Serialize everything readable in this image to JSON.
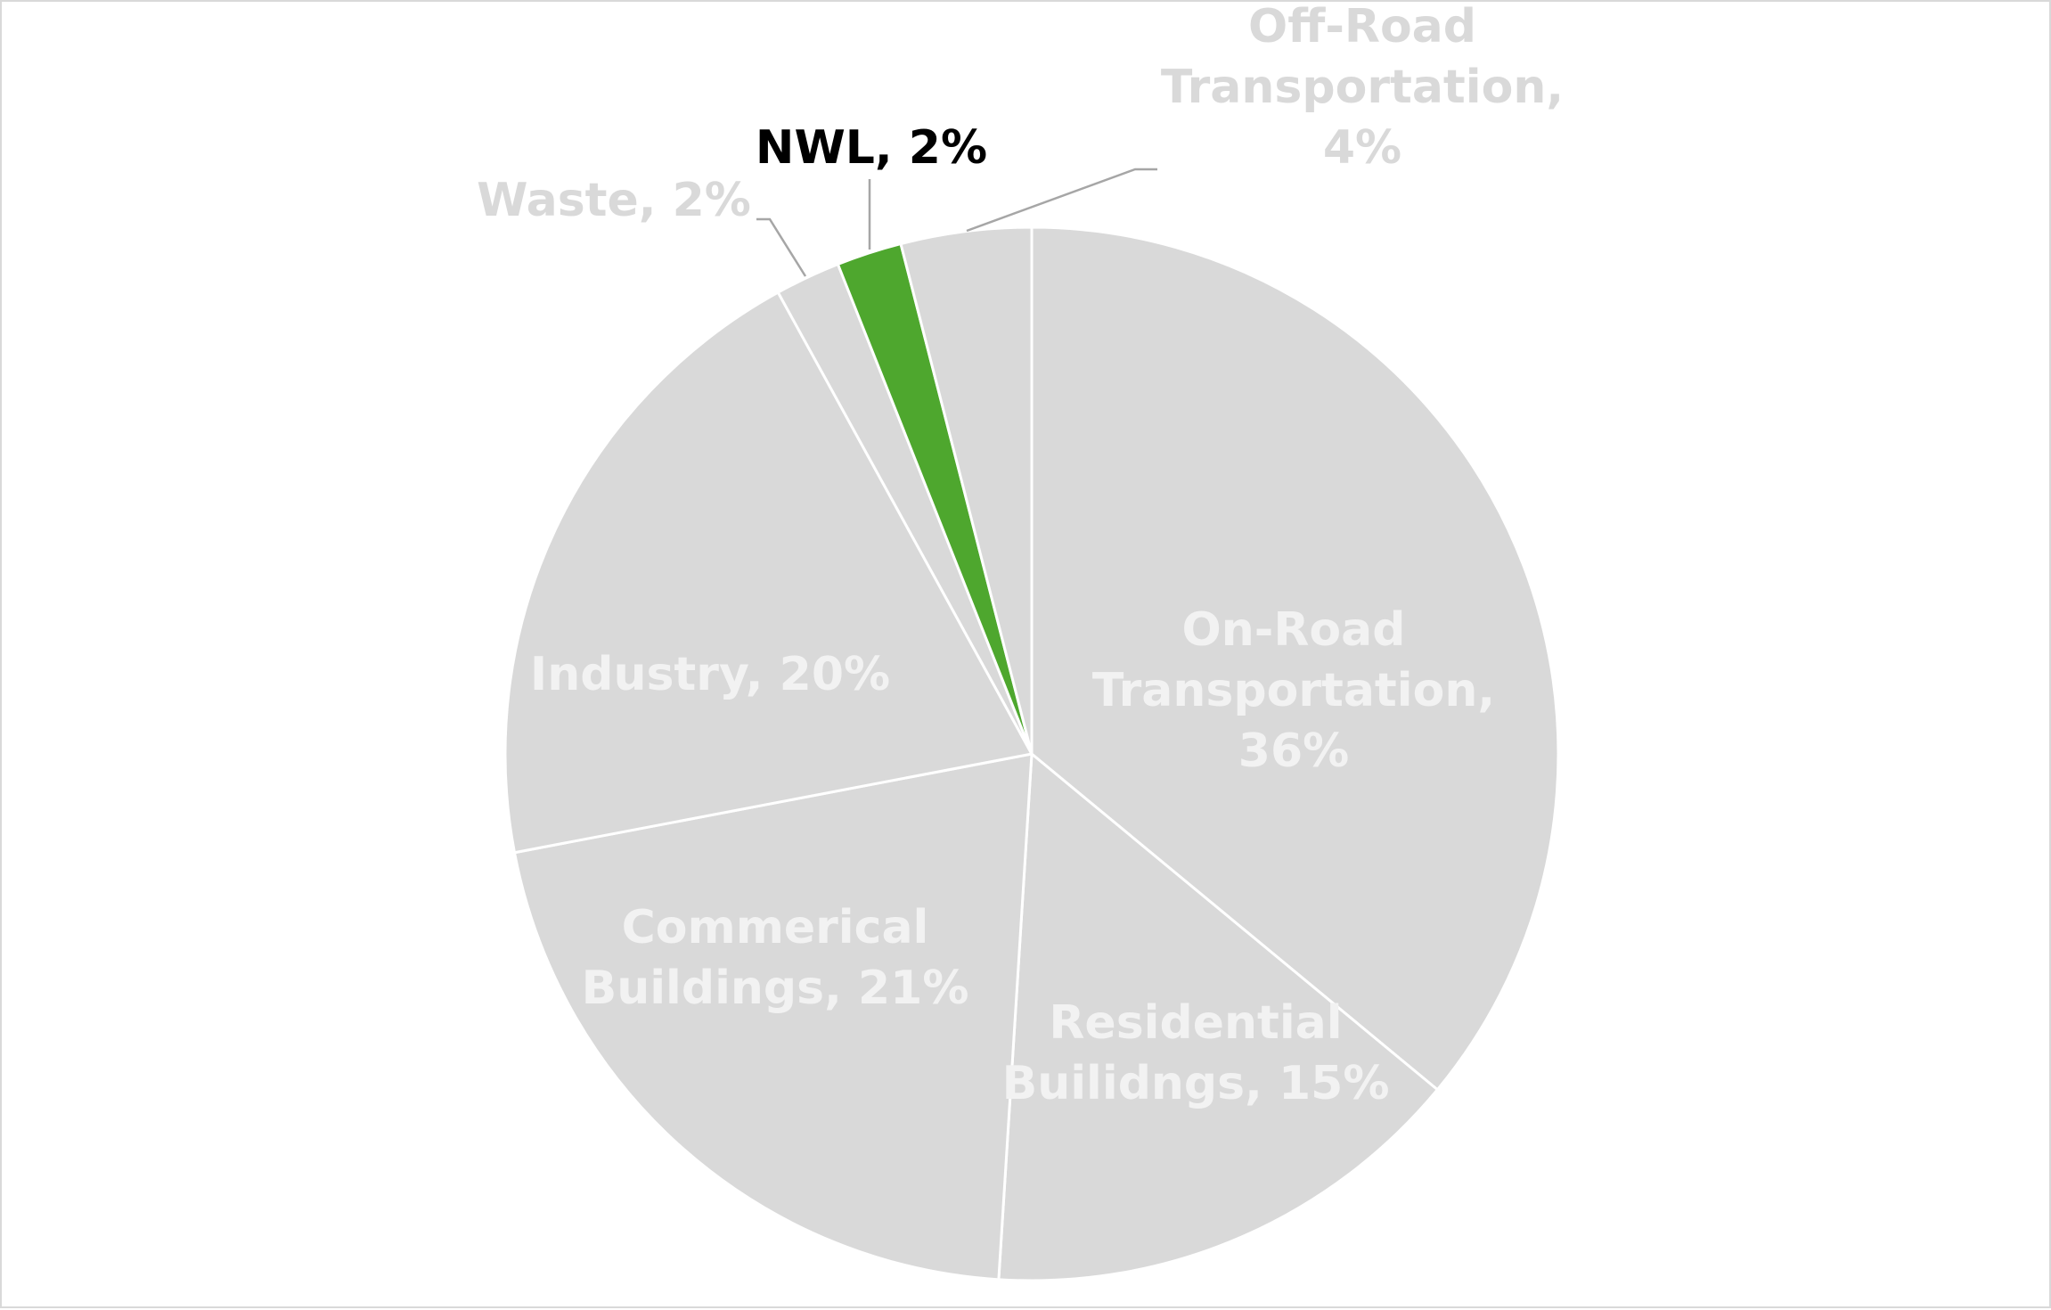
{
  "chart_data": {
    "type": "pie",
    "start_angle_deg": 0,
    "direction": "clockwise",
    "slice_border_color": "#ffffff",
    "slices": [
      {
        "label": "On-Road Transportation",
        "value": 36,
        "display": [
          "On-Road",
          "Transportation,",
          "36%"
        ],
        "color": "#d9d9d9",
        "label_color": "#f2f2f2",
        "label_position": "inside"
      },
      {
        "label": "Residential Builidngs",
        "value": 15,
        "display": [
          "Residential",
          "Builidngs, 15%"
        ],
        "color": "#d9d9d9",
        "label_color": "#f2f2f2",
        "label_position": "inside"
      },
      {
        "label": "Commerical Buildings",
        "value": 21,
        "display": [
          "Commerical",
          "Buildings, 21%"
        ],
        "color": "#d9d9d9",
        "label_color": "#f2f2f2",
        "label_position": "inside"
      },
      {
        "label": "Industry",
        "value": 20,
        "display": [
          "Industry, 20%"
        ],
        "color": "#d9d9d9",
        "label_color": "#f2f2f2",
        "label_position": "inside"
      },
      {
        "label": "Waste",
        "value": 2,
        "display": [
          "Waste, 2%"
        ],
        "color": "#d9d9d9",
        "label_color": "#d9d9d9",
        "label_position": "outside"
      },
      {
        "label": "NWL",
        "value": 2,
        "display": [
          "NWL, 2%"
        ],
        "color": "#4ea72e",
        "label_color": "#000000",
        "label_position": "outside"
      },
      {
        "label": "Off-Road Transportation",
        "value": 4,
        "display": [
          "Off-Road",
          "Transportation,",
          "4%"
        ],
        "color": "#d9d9d9",
        "label_color": "#d9d9d9",
        "label_position": "outside"
      }
    ]
  }
}
